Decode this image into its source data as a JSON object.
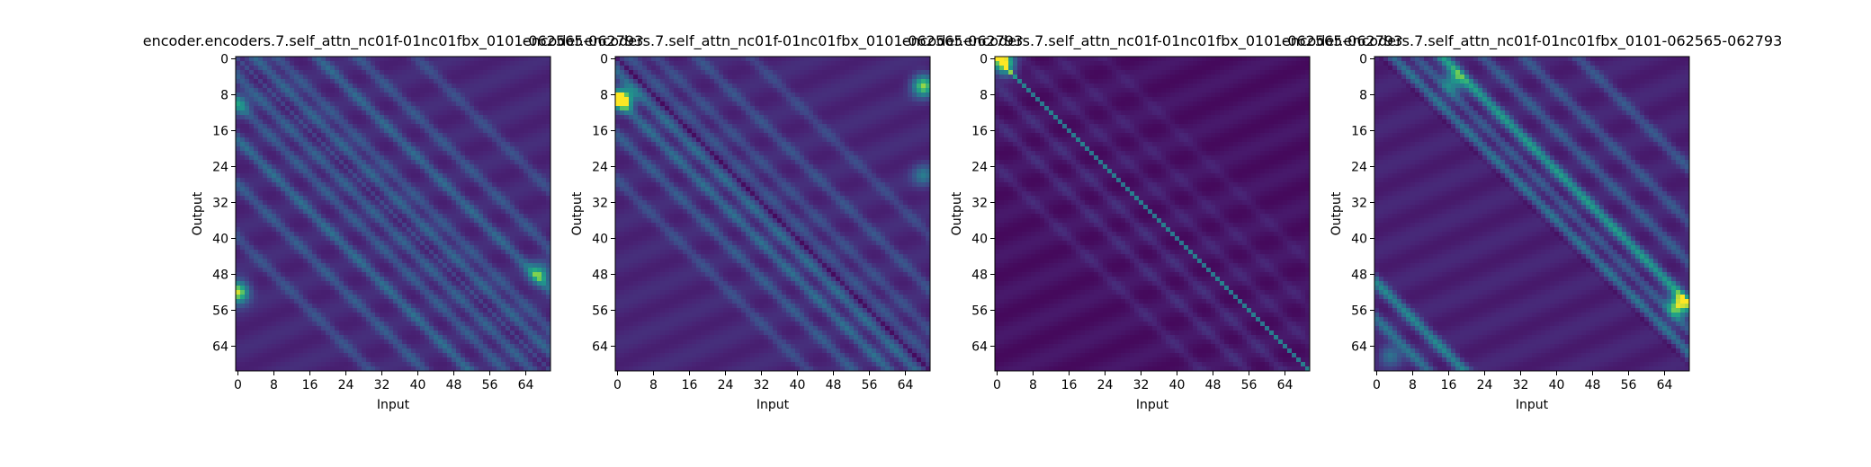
{
  "chart_data": [
    {
      "type": "heatmap",
      "title": "encoder.encoders.7.self_attn_nc01f-01nc01fbx_0101-062565-062793",
      "xlabel": "Input",
      "ylabel": "Output",
      "size": 70,
      "xticks": [
        0,
        8,
        16,
        24,
        32,
        40,
        48,
        56,
        64
      ],
      "yticks": [
        0,
        8,
        16,
        24,
        32,
        40,
        48,
        56,
        64
      ],
      "colormap": "viridis",
      "pattern": {
        "base": 0.14,
        "main_diagonal": 0.12,
        "diagonal_bands": [
          {
            "offset": 4,
            "strength": 0.26
          },
          {
            "offset": -4,
            "strength": 0.24
          },
          {
            "offset": 9,
            "strength": 0.2
          },
          {
            "offset": -10,
            "strength": 0.22
          },
          {
            "offset": 18,
            "strength": 0.28
          },
          {
            "offset": -18,
            "strength": 0.3
          },
          {
            "offset": 27,
            "strength": 0.2
          },
          {
            "offset": -28,
            "strength": 0.22
          },
          {
            "offset": 40,
            "strength": 0.16
          },
          {
            "offset": -40,
            "strength": 0.18
          }
        ],
        "hotspots": [
          {
            "row": 52,
            "col": 0,
            "strength": 0.85
          },
          {
            "row": 48,
            "col": 67,
            "strength": 0.55
          },
          {
            "row": 10,
            "col": 0,
            "strength": 0.35
          }
        ]
      }
    },
    {
      "type": "heatmap",
      "title": "encoder.encoders.7.self_attn_nc01f-01nc01fbx_0101-062565-062793",
      "xlabel": "Input",
      "ylabel": "Output",
      "size": 70,
      "xticks": [
        0,
        8,
        16,
        24,
        32,
        40,
        48,
        56,
        64
      ],
      "yticks": [
        0,
        8,
        16,
        24,
        32,
        40,
        48,
        56,
        64
      ],
      "colormap": "viridis",
      "pattern": {
        "base": 0.14,
        "main_diagonal": -0.1,
        "diagonal_bands": [
          {
            "offset": -3,
            "strength": 0.3
          },
          {
            "offset": 3,
            "strength": 0.18
          },
          {
            "offset": -9,
            "strength": 0.3
          },
          {
            "offset": 9,
            "strength": 0.16
          },
          {
            "offset": -17,
            "strength": 0.22
          },
          {
            "offset": 18,
            "strength": 0.18
          },
          {
            "offset": -27,
            "strength": 0.16
          },
          {
            "offset": 30,
            "strength": 0.14
          }
        ],
        "hotspots": [
          {
            "row": 9,
            "col": 1,
            "strength": 0.9
          },
          {
            "row": 6,
            "col": 68,
            "strength": 0.75
          },
          {
            "row": 26,
            "col": 68,
            "strength": 0.35
          }
        ]
      }
    },
    {
      "type": "heatmap",
      "title": "encoder.encoders.7.self_attn_nc01f-01nc01fbx_0101-062565-062793",
      "xlabel": "Input",
      "ylabel": "Output",
      "size": 70,
      "xticks": [
        0,
        8,
        16,
        24,
        32,
        40,
        48,
        56,
        64
      ],
      "yticks": [
        0,
        8,
        16,
        24,
        32,
        40,
        48,
        56,
        64
      ],
      "colormap": "viridis",
      "pattern": {
        "base": 0.06,
        "main_diagonal": 0.45,
        "diagonal_bands": [
          {
            "offset": -6,
            "strength": 0.1
          },
          {
            "offset": 6,
            "strength": 0.07
          },
          {
            "offset": -14,
            "strength": 0.1
          },
          {
            "offset": 14,
            "strength": 0.06
          },
          {
            "offset": -24,
            "strength": 0.08
          },
          {
            "offset": 24,
            "strength": 0.05
          }
        ],
        "hotspots": [
          {
            "row": 0,
            "col": 1,
            "strength": 0.8
          },
          {
            "row": 2,
            "col": 2,
            "strength": 0.45
          }
        ]
      }
    },
    {
      "type": "heatmap",
      "title": "encoder.encoders.7.self_attn_nc01f-01nc01fbx_0101-062565-062793",
      "xlabel": "Input",
      "ylabel": "Output",
      "size": 70,
      "xticks": [
        0,
        8,
        16,
        24,
        32,
        40,
        48,
        56,
        64
      ],
      "yticks": [
        0,
        8,
        16,
        24,
        32,
        40,
        48,
        56,
        64
      ],
      "colormap": "viridis",
      "pattern": {
        "base": 0.12,
        "main_diagonal": 0.0,
        "upper_triangle_dark": true,
        "diagonal_bands": [
          {
            "offset": 4,
            "strength": 0.4
          },
          {
            "offset": 9,
            "strength": 0.28
          },
          {
            "offset": 15,
            "strength": 0.55
          },
          {
            "offset": 24,
            "strength": 0.25
          },
          {
            "offset": 33,
            "strength": 0.22
          },
          {
            "offset": 45,
            "strength": 0.22
          },
          {
            "offset": -50,
            "strength": 0.45
          },
          {
            "offset": -58,
            "strength": 0.35
          }
        ],
        "hotspots": [
          {
            "row": 55,
            "col": 67,
            "strength": 0.85
          },
          {
            "row": 5,
            "col": 17,
            "strength": 0.5
          },
          {
            "row": 66,
            "col": 3,
            "strength": 0.35
          }
        ]
      }
    }
  ]
}
